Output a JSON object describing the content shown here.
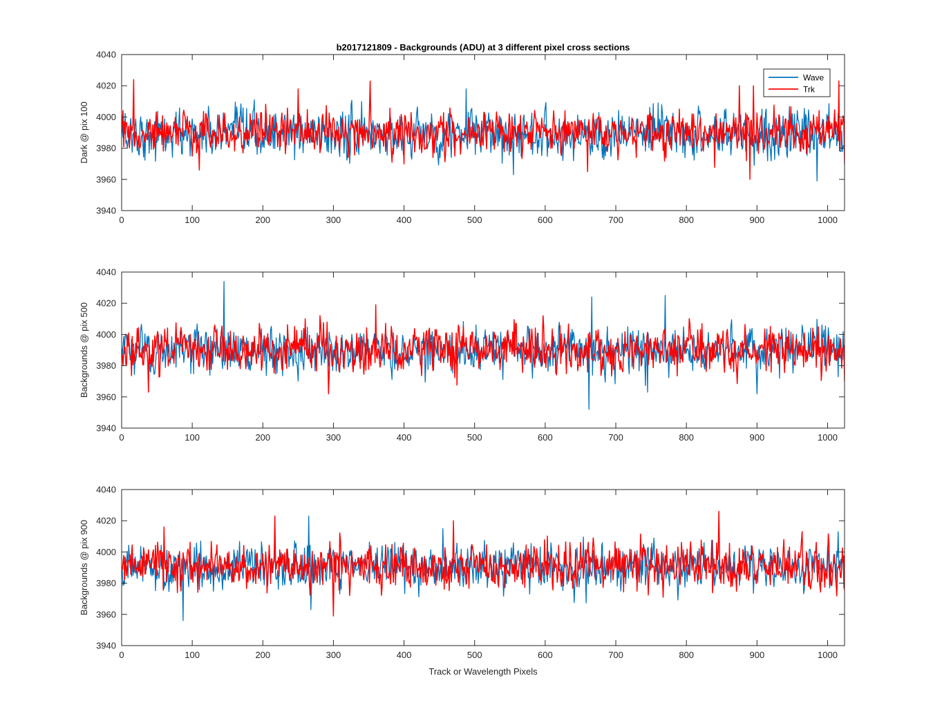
{
  "figure": {
    "title": "b2017121809 - Backgrounds (ADU) at 3 different pixel cross sections",
    "xlabel": "Track or Wavelength Pixels"
  },
  "legend": {
    "placement": "top-right",
    "entries": [
      {
        "label": "Wave",
        "color": "#0072bd"
      },
      {
        "label": "Trk",
        "color": "#ff0000"
      }
    ]
  },
  "chart_data": [
    {
      "type": "line",
      "ylabel": "Dark @ pix 100",
      "xlim": [
        0,
        1024
      ],
      "ylim": [
        3940,
        4040
      ],
      "xticks": [
        0,
        100,
        200,
        300,
        400,
        500,
        600,
        700,
        800,
        900,
        1000
      ],
      "yticks": [
        3940,
        3960,
        3980,
        4000,
        4020,
        4040
      ],
      "grid": false,
      "series": [
        {
          "name": "Wave",
          "color": "#0072bd",
          "level": 3989,
          "noise_sd": 7.5,
          "x": [
            0,
            115,
            150,
            237,
            300,
            418,
            488,
            555,
            602,
            640,
            700,
            740,
            760,
            800,
            850,
            907,
            962,
            985,
            1010,
            1024
          ],
          "y": [
            3988,
            3998,
            3990,
            3982,
            3987,
            4003,
            4018,
            3963,
            3990,
            3972,
            3989,
            3985,
            4009,
            3985,
            3992,
            4005,
            3991,
            3959,
            4001,
            3981
          ]
        },
        {
          "name": "Trk",
          "color": "#ff0000",
          "level": 3990,
          "noise_sd": 6.5,
          "x": [
            0,
            17,
            50,
            110,
            180,
            250,
            352,
            430,
            500,
            660,
            700,
            800,
            875,
            885,
            890,
            895,
            1000,
            1016,
            1024
          ],
          "y": [
            3990,
            4024,
            3985,
            3966,
            3986,
            4018,
            4023,
            3980,
            3990,
            3965,
            3995,
            3985,
            4020,
            3972,
            3960,
            4020,
            3990,
            4023,
            3970
          ]
        }
      ]
    },
    {
      "type": "line",
      "ylabel": "Backgrounds @ pix 500",
      "xlim": [
        0,
        1024
      ],
      "ylim": [
        3940,
        4040
      ],
      "xticks": [
        0,
        100,
        200,
        300,
        400,
        500,
        600,
        700,
        800,
        900,
        1000
      ],
      "yticks": [
        3940,
        3960,
        3980,
        4000,
        4020,
        4040
      ],
      "grid": false,
      "series": [
        {
          "name": "Wave",
          "color": "#0072bd",
          "level": 3990,
          "noise_sd": 7.0,
          "x": [
            0,
            100,
            145,
            147,
            200,
            300,
            400,
            500,
            600,
            655,
            662,
            666,
            700,
            745,
            770,
            772,
            800,
            900,
            970,
            1024
          ],
          "y": [
            3992,
            3988,
            4034,
            3985,
            3992,
            3990,
            3985,
            3992,
            3990,
            3993,
            3952,
            4024,
            3990,
            3963,
            4025,
            3990,
            3988,
            3962,
            3990,
            3980
          ]
        },
        {
          "name": "Trk",
          "color": "#ff0000",
          "level": 3990,
          "noise_sd": 7.0,
          "x": [
            0,
            38,
            100,
            200,
            293,
            360,
            400,
            500,
            600,
            700,
            720,
            800,
            900,
            1000,
            1024
          ],
          "y": [
            3988,
            3963,
            3988,
            3990,
            3962,
            4019,
            3990,
            3994,
            3988,
            3992,
            3990,
            3992,
            3990,
            3995,
            3970
          ]
        }
      ]
    },
    {
      "type": "line",
      "ylabel": "Backgrounds @ pix 900",
      "xlim": [
        0,
        1024
      ],
      "ylim": [
        3940,
        4040
      ],
      "xticks": [
        0,
        100,
        200,
        300,
        400,
        500,
        600,
        700,
        800,
        900,
        1000
      ],
      "yticks": [
        3940,
        3960,
        3980,
        4000,
        4020,
        4040
      ],
      "grid": false,
      "series": [
        {
          "name": "Wave",
          "color": "#0072bd",
          "level": 3990,
          "noise_sd": 7.0,
          "x": [
            0,
            87,
            100,
            200,
            265,
            268,
            400,
            455,
            500,
            600,
            700,
            800,
            900,
            1015,
            1024
          ],
          "y": [
            3990,
            3956,
            3990,
            3990,
            4023,
            3963,
            3990,
            4015,
            3990,
            3992,
            3990,
            3990,
            3988,
            4013,
            3990
          ]
        },
        {
          "name": "Trk",
          "color": "#ff0000",
          "level": 3991,
          "noise_sd": 7.0,
          "x": [
            0,
            60,
            180,
            217,
            300,
            400,
            470,
            500,
            600,
            700,
            846,
            850,
            900,
            1016,
            1024
          ],
          "y": [
            3990,
            4016,
            3988,
            4023,
            3959,
            3990,
            4020,
            3990,
            3992,
            3990,
            4026,
            3990,
            3988,
            3990,
            3975
          ]
        }
      ]
    }
  ]
}
